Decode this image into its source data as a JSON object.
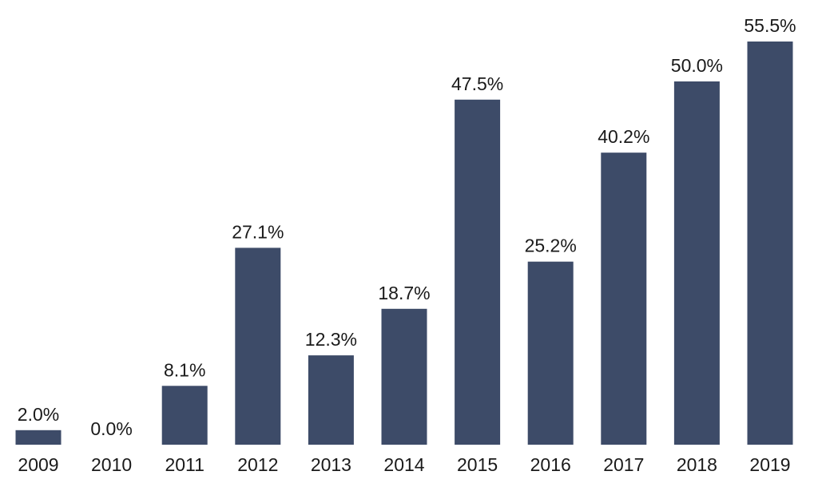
{
  "chart_data": {
    "type": "bar",
    "categories": [
      "2009",
      "2010",
      "2011",
      "2012",
      "2013",
      "2014",
      "2015",
      "2016",
      "2017",
      "2018",
      "2019"
    ],
    "values": [
      2.0,
      0.0,
      8.1,
      27.1,
      12.3,
      18.7,
      47.5,
      25.2,
      40.2,
      50.0,
      55.5
    ],
    "data_labels": [
      "2.0%",
      "0.0%",
      "8.1%",
      "27.1%",
      "12.3%",
      "18.7%",
      "47.5%",
      "25.2%",
      "40.2%",
      "50.0%",
      "55.5%"
    ],
    "title": "",
    "xlabel": "",
    "ylabel": "",
    "ylim": [
      0,
      55.5
    ],
    "grid": false,
    "legend": "none",
    "bar_color": "#3d4b68"
  }
}
